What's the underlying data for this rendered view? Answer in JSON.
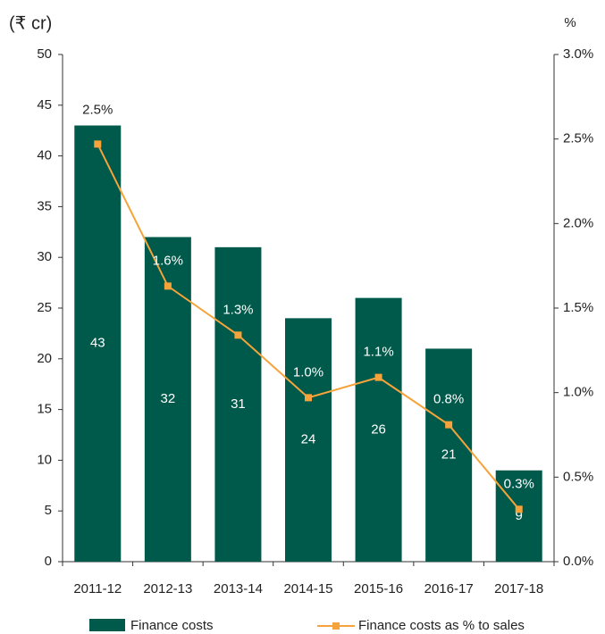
{
  "chart_data": {
    "type": "bar_line",
    "y_label": "(₹ cr)",
    "y2_label": "%",
    "categories": [
      "2011-12",
      "2012-13",
      "2013-14",
      "2014-15",
      "2015-16",
      "2016-17",
      "2017-18"
    ],
    "series": [
      {
        "name": "Finance costs",
        "type": "bar",
        "color": "#005a4b",
        "values": [
          43,
          32,
          31,
          24,
          26,
          21,
          9
        ]
      },
      {
        "name": "Finance costs as % to sales",
        "type": "line",
        "axis": "y2",
        "color": "#f5a33a",
        "values": [
          2.47,
          1.63,
          1.34,
          0.97,
          1.09,
          0.81,
          0.31
        ],
        "value_labels": [
          "2.5%",
          "1.6%",
          "1.3%",
          "1.0%",
          "1.1%",
          "0.8%",
          "0.3%"
        ]
      }
    ],
    "ylim": [
      0,
      50
    ],
    "yticks": [
      0,
      5,
      10,
      15,
      20,
      25,
      30,
      35,
      40,
      45,
      50
    ],
    "y2lim": [
      0,
      3
    ],
    "y2ticks": [
      {
        "value": 0,
        "label": "0.0%"
      },
      {
        "value": 0.5,
        "label": "0.5%"
      },
      {
        "value": 1,
        "label": "1.0%"
      },
      {
        "value": 1.5,
        "label": "1.5%"
      },
      {
        "value": 2,
        "label": "2.0%"
      },
      {
        "value": 2.5,
        "label": "2.5%"
      },
      {
        "value": 3,
        "label": "3.0%"
      }
    ],
    "legend": "bottom"
  }
}
